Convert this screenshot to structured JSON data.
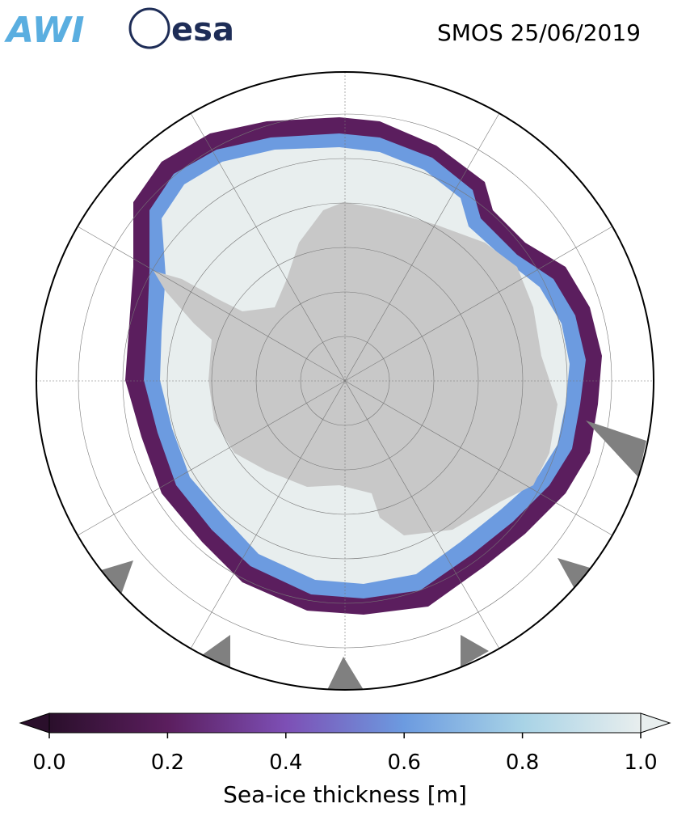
{
  "header": {
    "logos": [
      "AWI",
      "esa"
    ],
    "title": "SMOS 25/06/2019"
  },
  "map": {
    "colorbar": {
      "label": "Sea-ice thickness [m]",
      "lim": [
        0,
        1
      ],
      "ticks": [
        {
          "value": 0,
          "label": "0.0"
        },
        0.2,
        0.4,
        0.6,
        0.8,
        {
          "value": 1,
          "label": "1.0"
        }
      ],
      "colors": [
        "#2a0f2b",
        "#5b1e5e",
        "#7d4fb5",
        "#6c9be0",
        "#a8d3e6",
        "#e8eeee"
      ]
    }
  }
}
